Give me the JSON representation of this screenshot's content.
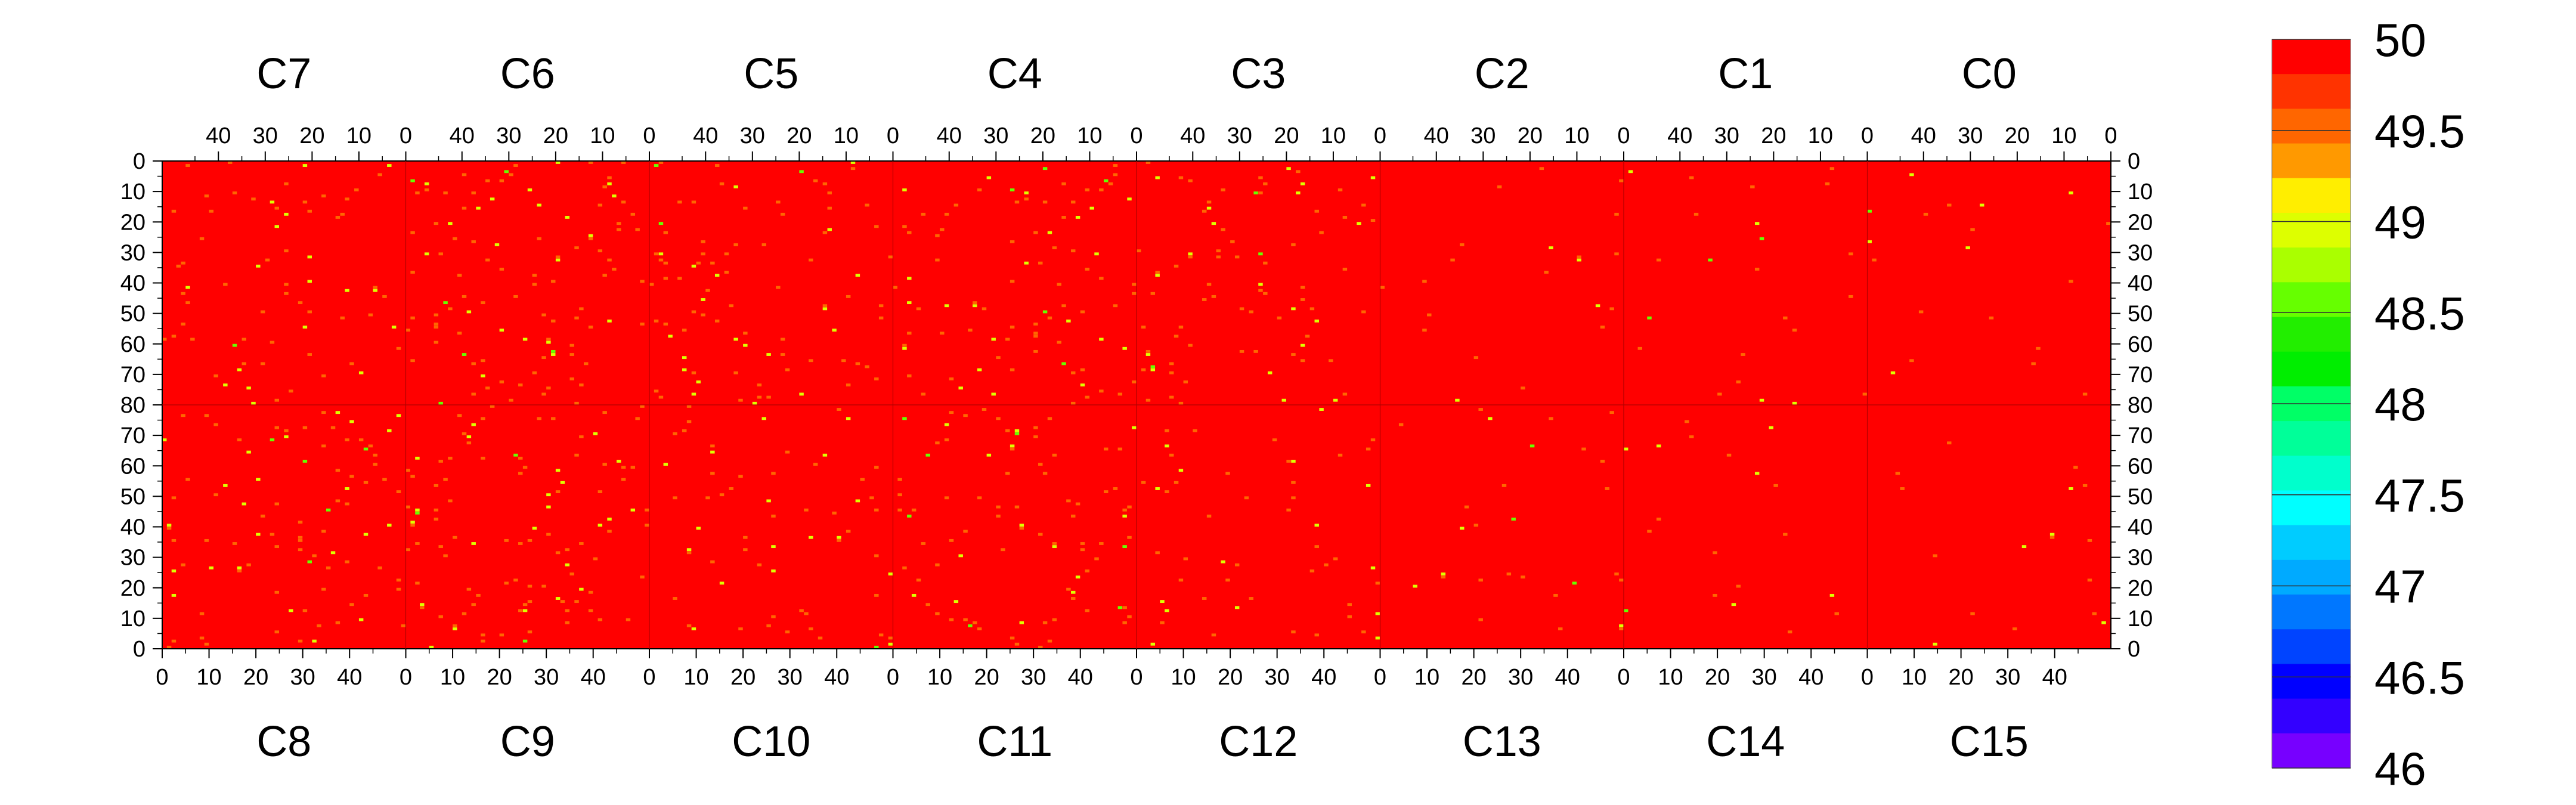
{
  "chart_data": {
    "type": "heatmap",
    "title": "",
    "xlabel": "",
    "ylabel": "",
    "grid": false,
    "value_range": [
      46,
      50
    ],
    "colorbar": {
      "position": "right",
      "tick_labels": [
        "50",
        "49.5",
        "49",
        "48.5",
        "48",
        "47.5",
        "47",
        "46.5",
        "46"
      ],
      "tick_values": [
        50,
        49.5,
        49,
        48.5,
        48,
        47.5,
        47,
        46.5,
        46
      ],
      "color_steps": [
        "#ff0000",
        "#ff3300",
        "#ff6600",
        "#ff9900",
        "#ffee00",
        "#ddff00",
        "#aaff00",
        "#66ff00",
        "#22ee00",
        "#00ee00",
        "#00ff66",
        "#00ff99",
        "#00ffcc",
        "#00ffff",
        "#00ccff",
        "#00aaff",
        "#0077ff",
        "#0044ff",
        "#0000ff",
        "#3300ff",
        "#7700ff"
      ]
    },
    "top_row": {
      "chip_labels": [
        "C7",
        "C6",
        "C5",
        "C4",
        "C3",
        "C2",
        "C1",
        "C0"
      ],
      "x_tick_labels": [
        "40",
        "30",
        "20",
        "10",
        "0"
      ],
      "x_tick_values": [
        40,
        30,
        20,
        10,
        0
      ],
      "x_direction": "descending"
    },
    "bottom_row": {
      "chip_labels": [
        "C8",
        "C9",
        "C10",
        "C11",
        "C12",
        "C13",
        "C14",
        "C15"
      ],
      "x_tick_labels": [
        "0",
        "10",
        "20",
        "30",
        "40"
      ],
      "x_tick_values": [
        0,
        10,
        20,
        30,
        40
      ],
      "x_direction": "ascending"
    },
    "columns_per_chip": 52,
    "rows_per_half": 80,
    "x_range": [
      0,
      52
    ],
    "y_tick_labels_top_half": [
      "0",
      "10",
      "20",
      "30",
      "40",
      "50",
      "60",
      "70",
      "80"
    ],
    "y_tick_labels_bottom_half": [
      "70",
      "60",
      "50",
      "40",
      "30",
      "20",
      "10",
      "0"
    ],
    "y_tick_values_top_half": [
      0,
      10,
      20,
      30,
      40,
      50,
      60,
      70,
      80
    ],
    "y_tick_values_bottom_half": [
      70,
      60,
      50,
      40,
      30,
      20,
      10,
      0
    ],
    "background_value": 50,
    "outlier_values": [
      49.5,
      49,
      48.5
    ],
    "outlier_density_by_chip": {
      "C7": 0.018,
      "C6": 0.02,
      "C5": 0.02,
      "C4": 0.02,
      "C3": 0.016,
      "C2": 0.008,
      "C1": 0.004,
      "C0": 0.006,
      "C8": 0.02,
      "C9": 0.02,
      "C10": 0.018,
      "C11": 0.016,
      "C12": 0.014,
      "C13": 0.006,
      "C14": 0.004,
      "C15": 0.006
    }
  }
}
